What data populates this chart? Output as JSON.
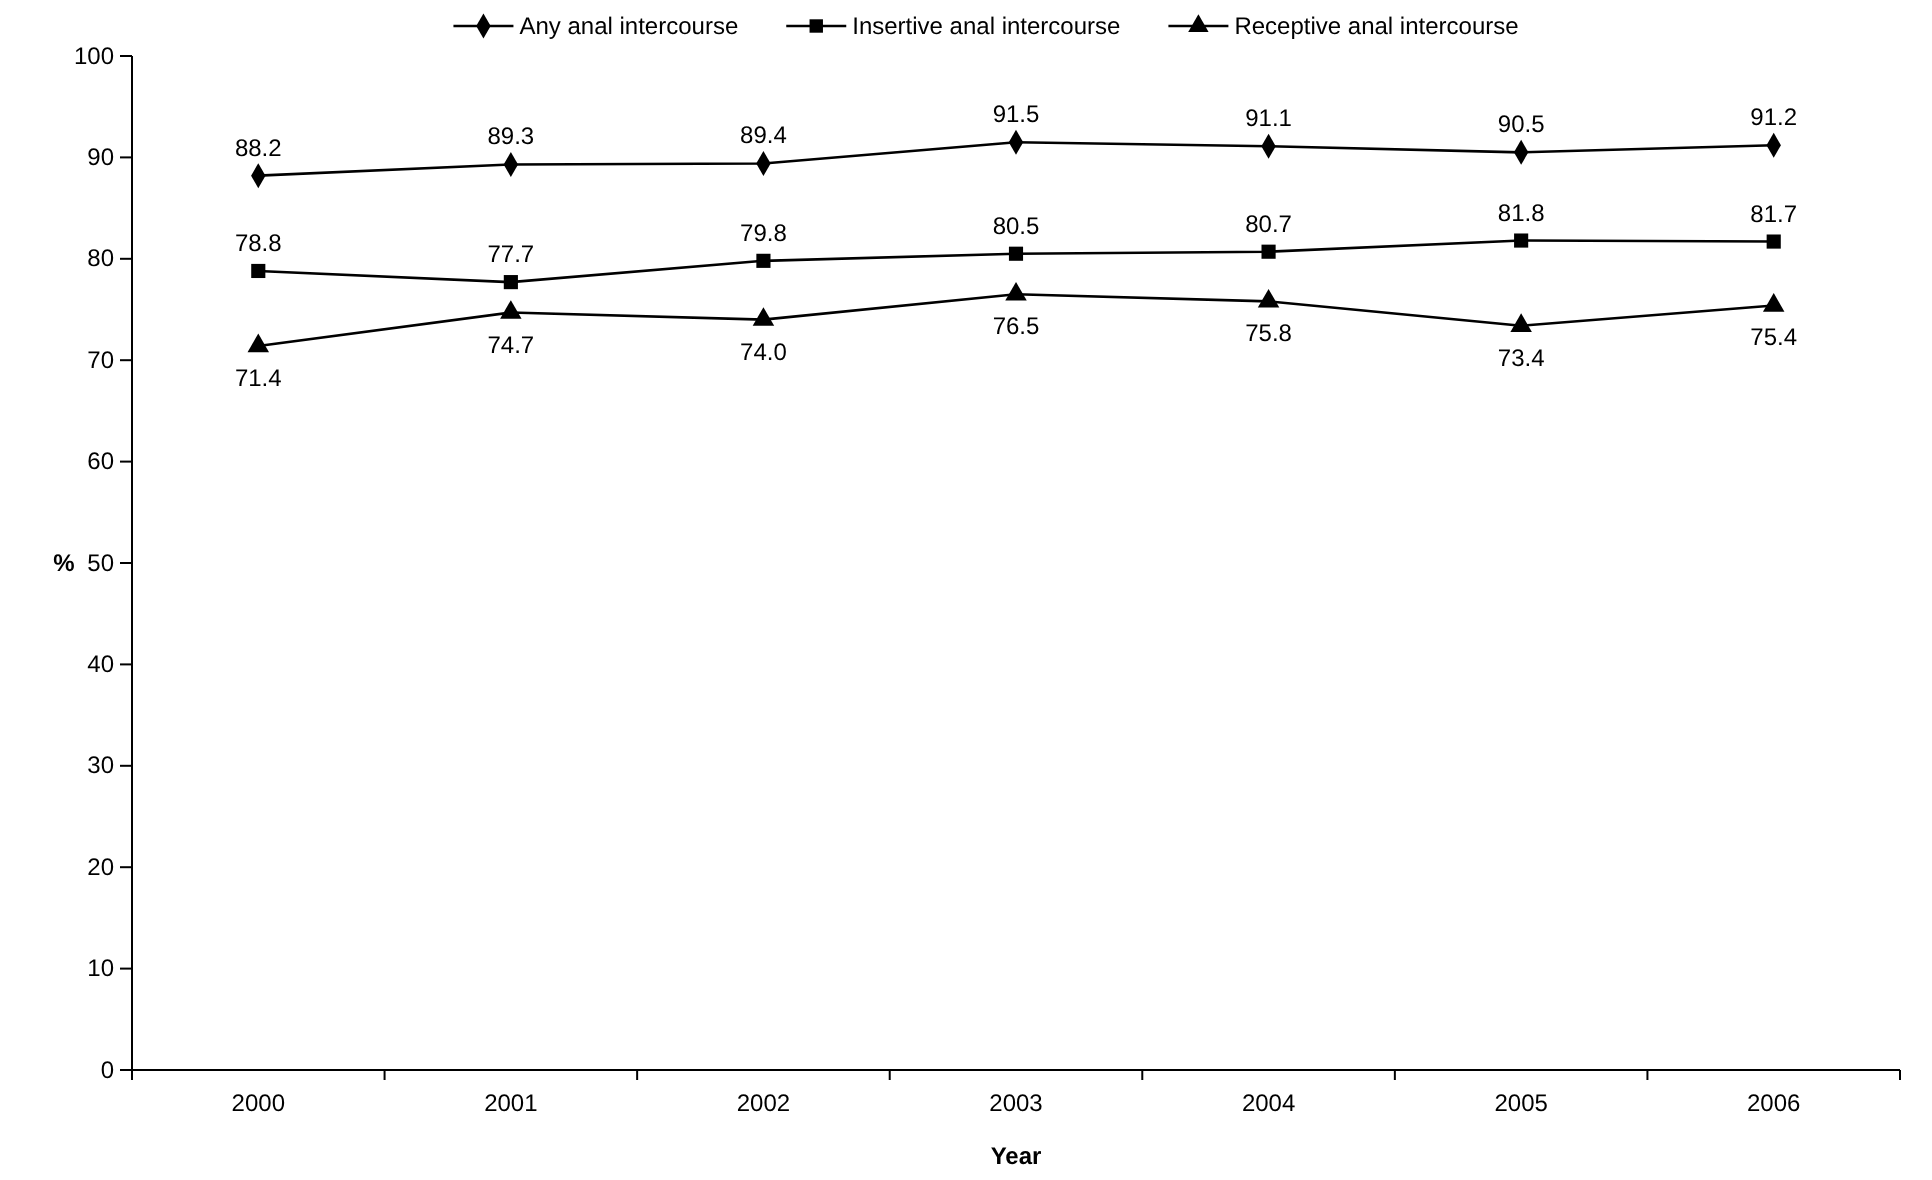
{
  "chart_data": {
    "type": "line",
    "xlabel": "Year",
    "ylabel": "%",
    "categories": [
      "2000",
      "2001",
      "2002",
      "2003",
      "2004",
      "2005",
      "2006"
    ],
    "series": [
      {
        "name": "Any anal intercourse",
        "color": "#000000",
        "marker": "diamond",
        "values": [
          88.2,
          89.3,
          89.4,
          91.5,
          91.1,
          90.5,
          91.2
        ],
        "value_labels": [
          "88.2",
          "89.3",
          "89.4",
          "91.5",
          "91.1",
          "90.5",
          "91.2"
        ]
      },
      {
        "name": "Insertive anal intercourse",
        "color": "#000000",
        "marker": "square",
        "values": [
          78.8,
          77.7,
          79.8,
          80.5,
          80.7,
          81.8,
          81.7
        ],
        "value_labels": [
          "78.8",
          "77.7",
          "79.8",
          "80.5",
          "80.7",
          "81.8",
          "81.7"
        ]
      },
      {
        "name": "Receptive anal intercourse",
        "color": "#000000",
        "marker": "triangle",
        "values": [
          71.4,
          74.7,
          74.0,
          76.5,
          75.8,
          73.4,
          75.4
        ],
        "value_labels": [
          "71.4",
          "74.7",
          "74.0",
          "76.5",
          "75.8",
          "73.4",
          "75.4"
        ]
      }
    ],
    "ylim": [
      0,
      100
    ],
    "yticks": [
      0,
      10,
      20,
      30,
      40,
      50,
      60,
      70,
      80,
      90,
      100
    ],
    "grid": false,
    "legend": "top",
    "line_style": "solid"
  }
}
